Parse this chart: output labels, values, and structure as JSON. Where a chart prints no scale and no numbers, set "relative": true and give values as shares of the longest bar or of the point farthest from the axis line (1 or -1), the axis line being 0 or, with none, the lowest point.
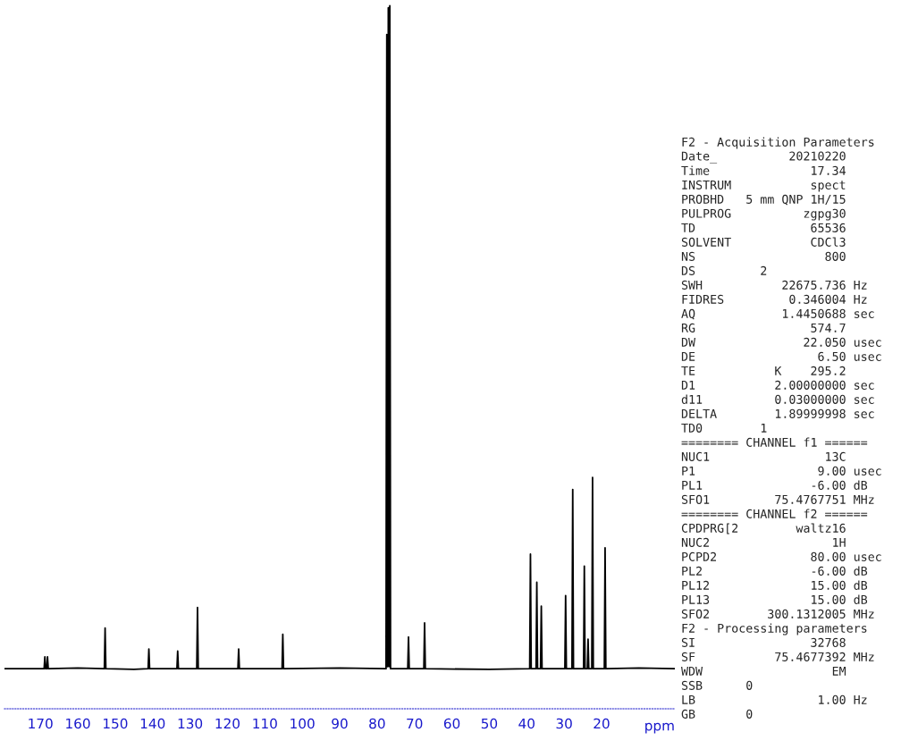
{
  "chart_data": {
    "type": "line",
    "relative": true,
    "xlabel": "ppm",
    "x": [
      179.6,
      169.0,
      168.8,
      168.6,
      168.3,
      168.1,
      167.9,
      160,
      152.9,
      152.7,
      152.5,
      145,
      141.2,
      141.0,
      140.8,
      133.5,
      133.3,
      133.1,
      128.2,
      128.0,
      127.8,
      117.2,
      117.0,
      116.8,
      105.4,
      105.2,
      105.0,
      90,
      77.6,
      77.4,
      77.2,
      77.0,
      76.8,
      76.6,
      76.4,
      71.8,
      71.6,
      71.4,
      67.5,
      67.3,
      67.1,
      50,
      39.2,
      39.0,
      38.8,
      37.5,
      37.3,
      37.1,
      36.3,
      36.1,
      35.9,
      29.8,
      29.6,
      29.4,
      27.9,
      27.7,
      27.5,
      24.8,
      24.6,
      24.4,
      23.8,
      23.6,
      23.4,
      22.6,
      22.4,
      22.2,
      19.25,
      19.05,
      18.85,
      10,
      0.4
    ],
    "series": [
      {
        "color": "#000000",
        "values": [
          0.057,
          0.057,
          0.074,
          0.057,
          0.057,
          0.074,
          0.057,
          0.058,
          0.057,
          0.115,
          0.057,
          0.056,
          0.057,
          0.085,
          0.057,
          0.057,
          0.082,
          0.057,
          0.057,
          0.144,
          0.057,
          0.057,
          0.085,
          0.057,
          0.057,
          0.106,
          0.057,
          0.058,
          0.057,
          0.959,
          0.06,
          0.997,
          0.06,
          1.0,
          0.057,
          0.057,
          0.102,
          0.057,
          0.057,
          0.122,
          0.057,
          0.056,
          0.057,
          0.22,
          0.057,
          0.057,
          0.18,
          0.057,
          0.057,
          0.146,
          0.057,
          0.057,
          0.161,
          0.057,
          0.057,
          0.312,
          0.057,
          0.057,
          0.203,
          0.057,
          0.057,
          0.099,
          0.057,
          0.057,
          0.329,
          0.057,
          0.057,
          0.229,
          0.057,
          0.058,
          0.057
        ]
      }
    ],
    "xlim": [
      179.6,
      0.4
    ],
    "xticks": [
      170,
      160,
      150,
      140,
      130,
      120,
      110,
      100,
      90,
      80,
      70,
      60,
      50,
      40,
      30,
      20
    ],
    "tick_labels": "x",
    "grid": false,
    "legend": false,
    "annotations": [
      "F2 - Acquisition Parameters",
      "Date_          20210220",
      "Time              17.34",
      "INSTRUM           spect",
      "PROBHD   5 mm QNP 1H/15",
      "PULPROG          zgpg30",
      "TD                65536",
      "SOLVENT           CDCl3",
      "NS                  800",
      "DS         2",
      "SWH           22675.736 Hz",
      "FIDRES         0.346004 Hz",
      "AQ            1.4450688 sec",
      "RG                574.7",
      "DW               22.050 usec",
      "DE                 6.50 usec",
      "TE           K    295.2",
      "D1           2.00000000 sec",
      "d11          0.03000000 sec",
      "DELTA        1.89999998 sec",
      "TD0        1",
      "======== CHANNEL f1 ======",
      "NUC1                13C",
      "P1                 9.00 usec",
      "PL1               -6.00 dB",
      "SFO1         75.4767751 MHz",
      "======== CHANNEL f2 ======",
      "CPDPRG[2        waltz16",
      "NUC2                 1H",
      "PCPD2             80.00 usec",
      "PL2               -6.00 dB",
      "PL12              15.00 dB",
      "PL13              15.00 dB",
      "SFO2        300.1312005 MHz",
      "F2 - Processing parameters",
      "SI                32768",
      "SF           75.4677392 MHz",
      "WDW                  EM",
      "SSB      0",
      "LB                 1.00 Hz",
      "GB       0"
    ]
  }
}
